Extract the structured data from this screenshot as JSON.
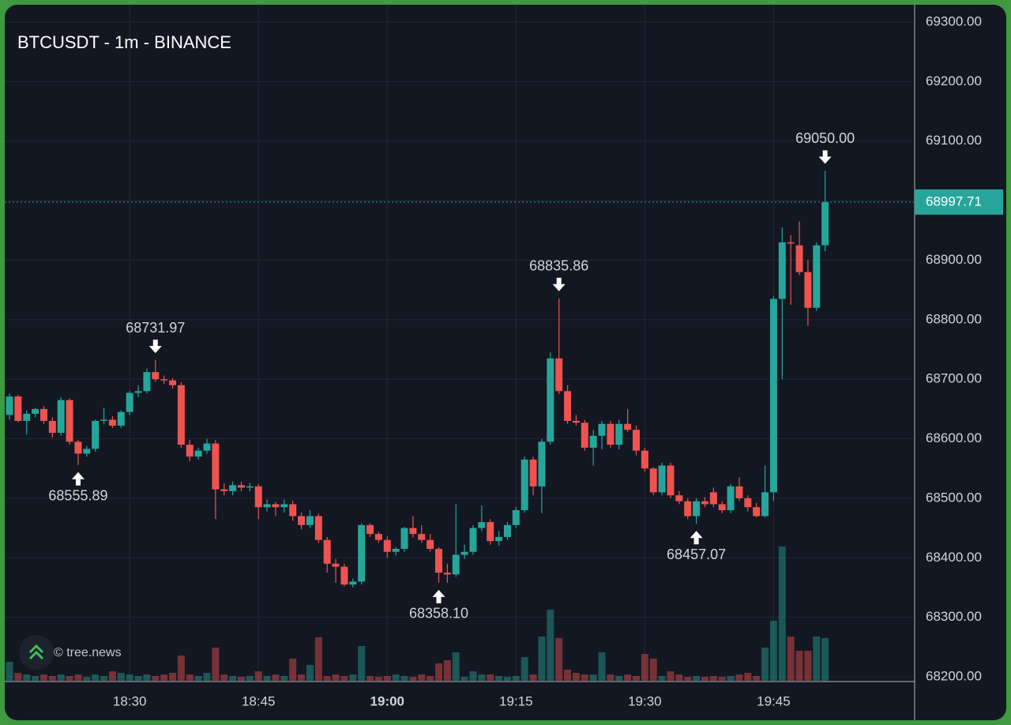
{
  "chart_data": {
    "type": "candlestick",
    "title": "BTCUSDT - 1m - BINANCE",
    "watermark": "© tree.news",
    "x": [
      "18:16",
      "18:17",
      "18:18",
      "18:19",
      "18:20",
      "18:21",
      "18:22",
      "18:23",
      "18:24",
      "18:25",
      "18:26",
      "18:27",
      "18:28",
      "18:29",
      "18:30",
      "18:31",
      "18:32",
      "18:33",
      "18:34",
      "18:35",
      "18:36",
      "18:37",
      "18:38",
      "18:39",
      "18:40",
      "18:41",
      "18:42",
      "18:43",
      "18:44",
      "18:45",
      "18:46",
      "18:47",
      "18:48",
      "18:49",
      "18:50",
      "18:51",
      "18:52",
      "18:53",
      "18:54",
      "18:55",
      "18:56",
      "18:57",
      "18:58",
      "18:59",
      "19:00",
      "19:01",
      "19:02",
      "19:03",
      "19:04",
      "19:05",
      "19:06",
      "19:07",
      "19:08",
      "19:09",
      "19:10",
      "19:11",
      "19:12",
      "19:13",
      "19:14",
      "19:15",
      "19:16",
      "19:17",
      "19:18",
      "19:19",
      "19:20",
      "19:21",
      "19:22",
      "19:23",
      "19:24",
      "19:25",
      "19:26",
      "19:27",
      "19:28",
      "19:29",
      "19:30",
      "19:31",
      "19:32",
      "19:33",
      "19:34",
      "19:35",
      "19:36",
      "19:37",
      "19:38",
      "19:39",
      "19:40",
      "19:41",
      "19:42",
      "19:43",
      "19:44",
      "19:45",
      "19:46",
      "19:47",
      "19:48",
      "19:49",
      "19:50",
      "19:51"
    ],
    "open": [
      68640,
      68671,
      68630,
      68642,
      68650,
      68630,
      68610,
      68665,
      68595,
      68575,
      68583,
      68630,
      68632,
      68622,
      68645,
      68677,
      68680,
      68712,
      68700,
      68698,
      68690,
      68590,
      68570,
      68580,
      68592,
      68515,
      68512,
      68522,
      68518,
      68520,
      68485,
      68490,
      68485,
      68490,
      68470,
      68455,
      68470,
      68430,
      68390,
      68385,
      68355,
      68360,
      68455,
      68440,
      68430,
      68410,
      68415,
      68450,
      68440,
      68430,
      68415,
      68375,
      68372,
      68405,
      68410,
      68450,
      68460,
      68428,
      68435,
      68455,
      68480,
      68565,
      68520,
      68595,
      68735,
      68680,
      68630,
      68627,
      68585,
      68605,
      68625,
      68590,
      68625,
      68615,
      68580,
      68550,
      68510,
      68555,
      68505,
      68495,
      68470,
      68495,
      68510,
      68490,
      68480,
      68520,
      68500,
      68485,
      68470,
      68510,
      68835,
      68930,
      68925,
      68880,
      68820,
      68925
    ],
    "high": [
      68676,
      68674,
      68648,
      68652,
      68655,
      68636,
      68670,
      68668,
      68598,
      68588,
      68632,
      68652,
      68638,
      68648,
      68680,
      68690,
      68718,
      68731.97,
      68706,
      68702,
      68695,
      68598,
      68585,
      68600,
      68598,
      68525,
      68528,
      68528,
      68526,
      68524,
      68498,
      68494,
      68498,
      68496,
      68476,
      68480,
      68474,
      68435,
      68398,
      68390,
      68365,
      68458,
      68458,
      68444,
      68436,
      68418,
      68452,
      68470,
      68455,
      68440,
      68418,
      68390,
      68490,
      68422,
      68455,
      68488,
      68465,
      68445,
      68460,
      68485,
      68570,
      68570,
      68600,
      68745,
      68835.86,
      68690,
      68640,
      68632,
      68615,
      68630,
      68630,
      68632,
      68650,
      68622,
      68585,
      68552,
      68560,
      68560,
      68512,
      68500,
      68500,
      68502,
      68518,
      68495,
      68524,
      68535,
      68505,
      68492,
      68555,
      68840,
      68955,
      68942,
      68965,
      68900,
      68930,
      69050
    ],
    "low": [
      68632,
      68628,
      68607,
      68636,
      68625,
      68602,
      68605,
      68590,
      68555.89,
      68570,
      68578,
      68624,
      68618,
      68618,
      68640,
      68670,
      68676,
      68696,
      68692,
      68684,
      68585,
      68562,
      68565,
      68575,
      68465,
      68505,
      68505,
      68512,
      68512,
      68465,
      68478,
      68470,
      68476,
      68462,
      68448,
      68450,
      68425,
      68375,
      68358,
      68352,
      68350,
      68355,
      68435,
      68425,
      68400,
      68404,
      68410,
      68434,
      68425,
      68410,
      68358.1,
      68358,
      68368,
      68398,
      68405,
      68445,
      68422,
      68420,
      68430,
      68450,
      68476,
      68505,
      68475,
      68590,
      68675,
      68625,
      68622,
      68580,
      68555,
      68582,
      68585,
      68582,
      68612,
      68572,
      68545,
      68505,
      68505,
      68500,
      68490,
      68465,
      68457.07,
      68485,
      68485,
      68475,
      68475,
      68495,
      68478,
      68468,
      68468,
      68495,
      68700,
      68825,
      68875,
      68790,
      68815,
      68915
    ],
    "close": [
      68671,
      68630,
      68642,
      68650,
      68630,
      68610,
      68665,
      68595,
      68575,
      68583,
      68630,
      68632,
      68622,
      68645,
      68677,
      68680,
      68712,
      68700,
      68698,
      68690,
      68590,
      68570,
      68580,
      68592,
      68515,
      68512,
      68522,
      68518,
      68520,
      68485,
      68490,
      68485,
      68490,
      68470,
      68455,
      68470,
      68430,
      68390,
      68385,
      68355,
      68360,
      68455,
      68440,
      68430,
      68410,
      68415,
      68450,
      68440,
      68430,
      68415,
      68375,
      68372,
      68405,
      68410,
      68450,
      68460,
      68428,
      68435,
      68455,
      68480,
      68565,
      68520,
      68595,
      68735,
      68680,
      68630,
      68627,
      68585,
      68605,
      68625,
      68590,
      68625,
      68615,
      68580,
      68550,
      68510,
      68555,
      68505,
      68495,
      68470,
      68495,
      68490,
      68490,
      68480,
      68520,
      68500,
      68485,
      68470,
      68510,
      68835,
      68930,
      68928,
      68880,
      68820,
      68925,
      68997.71
    ],
    "volume": [
      24,
      10,
      8,
      6,
      8,
      6,
      8,
      6,
      8,
      5,
      8,
      6,
      12,
      10,
      8,
      6,
      8,
      6,
      8,
      10,
      32,
      8,
      6,
      10,
      42,
      8,
      6,
      5,
      6,
      12,
      6,
      8,
      6,
      28,
      8,
      20,
      55,
      6,
      8,
      6,
      8,
      44,
      6,
      5,
      6,
      8,
      6,
      5,
      8,
      6,
      22,
      26,
      36,
      5,
      12,
      8,
      8,
      6,
      5,
      6,
      30,
      8,
      56,
      90,
      54,
      14,
      10,
      8,
      8,
      36,
      8,
      6,
      8,
      6,
      34,
      28,
      6,
      12,
      8,
      5,
      6,
      5,
      6,
      5,
      6,
      8,
      10,
      6,
      42,
      76,
      170,
      56,
      38,
      38,
      56,
      54
    ],
    "up_color": "#26a69a",
    "down_color": "#ef5350",
    "ylim": [
      68200,
      69300
    ],
    "yticks": [
      {
        "value": 68200,
        "label": "68200.00"
      },
      {
        "value": 68300,
        "label": "68300.00"
      },
      {
        "value": 68400,
        "label": "68400.00"
      },
      {
        "value": 68500,
        "label": "68500.00"
      },
      {
        "value": 68600,
        "label": "68600.00"
      },
      {
        "value": 68700,
        "label": "68700.00"
      },
      {
        "value": 68800,
        "label": "68800.00"
      },
      {
        "value": 68900,
        "label": "68900.00"
      },
      {
        "value": 69000,
        "label": "69000.00"
      },
      {
        "value": 69100,
        "label": "69100.00"
      },
      {
        "value": 69200,
        "label": "69200.00"
      },
      {
        "value": 69300,
        "label": "69300.00"
      }
    ],
    "xticks": [
      "18:30",
      "18:45",
      "19:00",
      "19:15",
      "19:30",
      "19:45"
    ],
    "last_price": 68997.71,
    "annotations": [
      {
        "x": "18:24",
        "text": "68555.89",
        "side": "low"
      },
      {
        "x": "18:33",
        "text": "68731.97",
        "side": "high"
      },
      {
        "x": "19:06",
        "text": "68358.10",
        "side": "low"
      },
      {
        "x": "19:20",
        "text": "68835.86",
        "side": "high"
      },
      {
        "x": "19:36",
        "text": "68457.07",
        "side": "low"
      },
      {
        "x": "19:51",
        "text": "69050.00",
        "side": "high"
      }
    ],
    "grid": true
  }
}
